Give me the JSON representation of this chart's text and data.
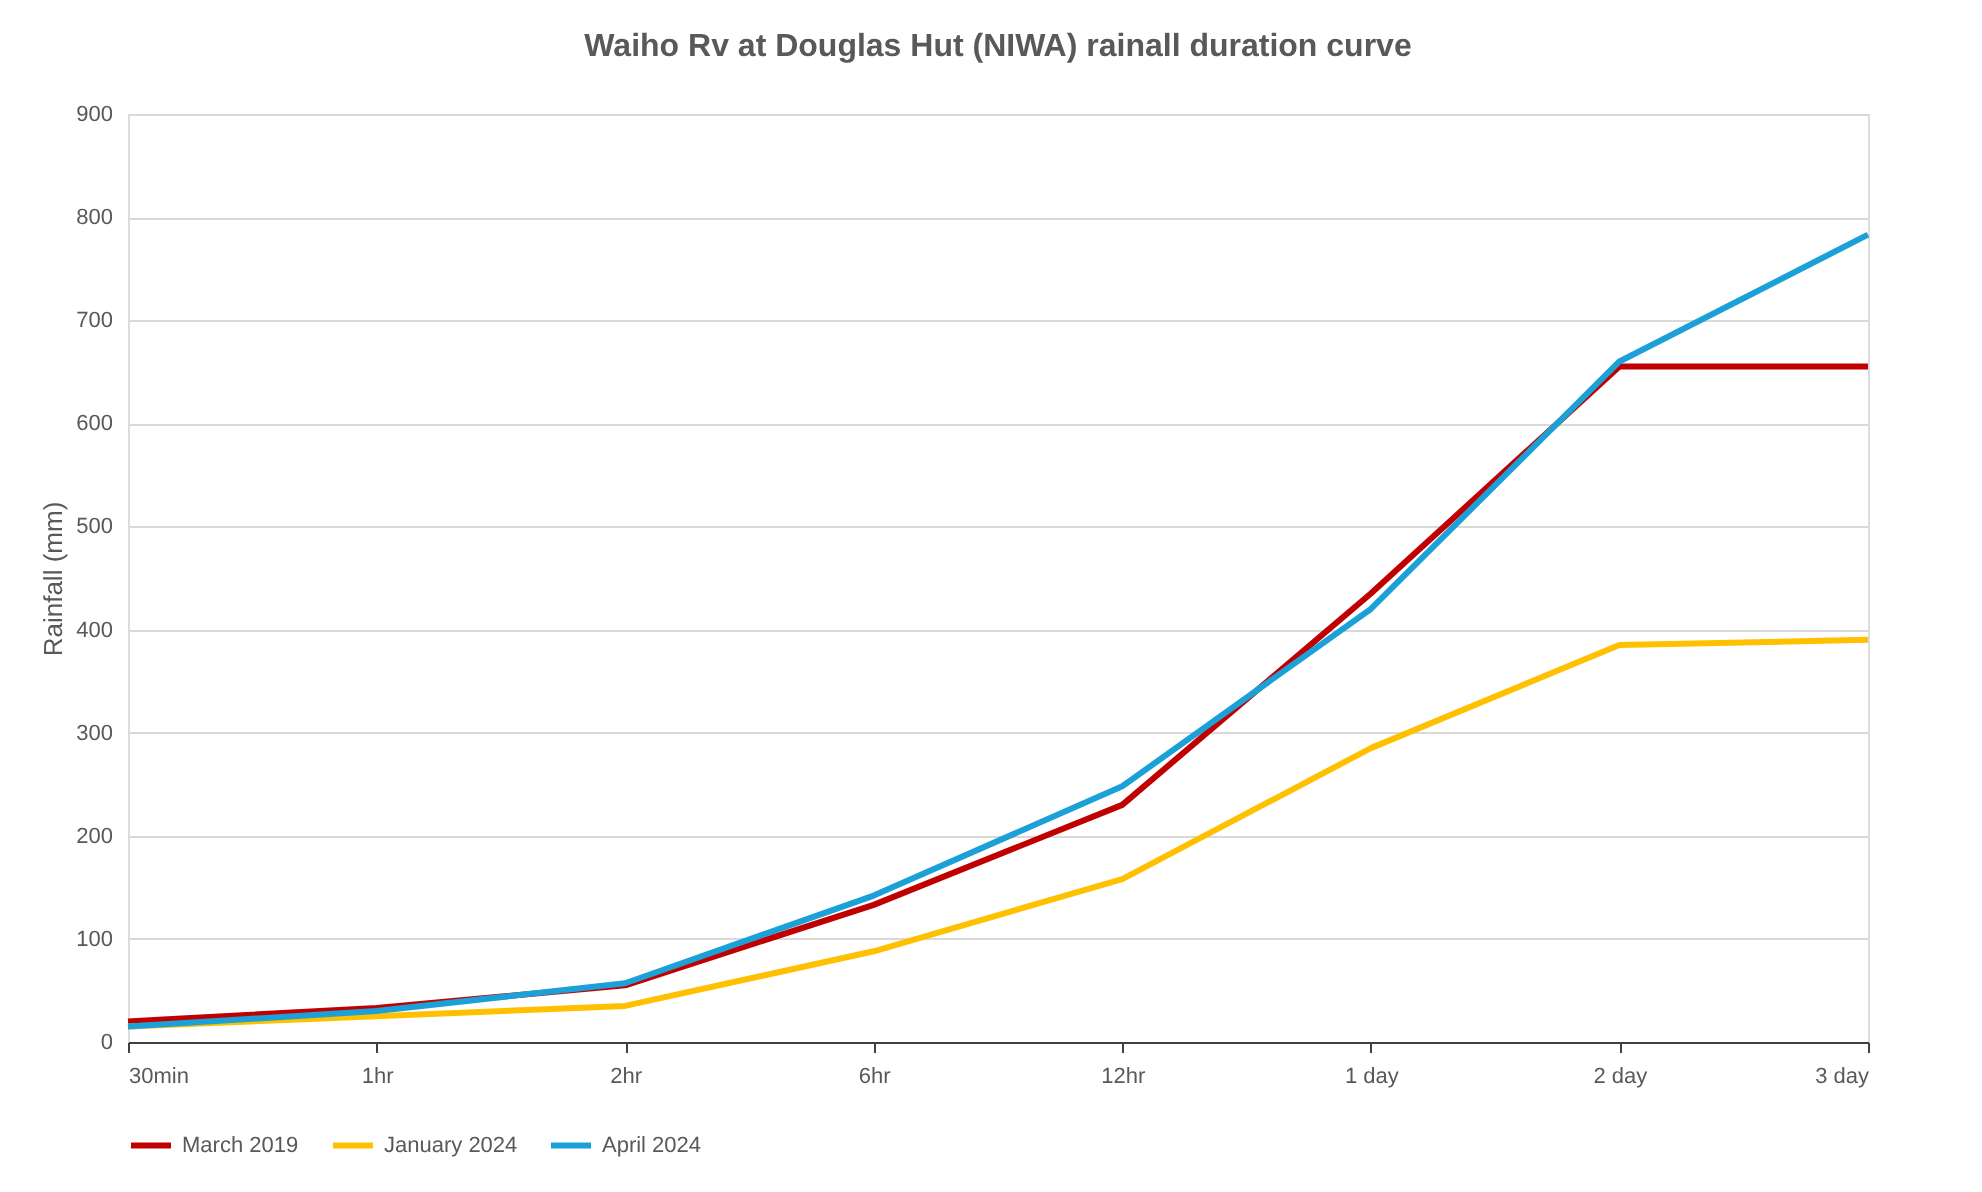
{
  "chart_data": {
    "type": "line",
    "title": "Waiho Rv at Douglas Hut (NIWA) rainall duration curve",
    "ylabel": "Rainfall (mm)",
    "categories": [
      "30min",
      "1hr",
      "2hr",
      "6hr",
      "12hr",
      "1 day",
      "2 day",
      "3 day"
    ],
    "series": [
      {
        "name": "March 2019",
        "color": "#c00000",
        "values": [
          20,
          33,
          55,
          133,
          230,
          435,
          655,
          655
        ]
      },
      {
        "name": "January 2024",
        "color": "#ffc000",
        "values": [
          15,
          25,
          35,
          88,
          158,
          285,
          385,
          390
        ]
      },
      {
        "name": "April 2024",
        "color": "#1ba1d7",
        "values": [
          15,
          30,
          57,
          142,
          248,
          420,
          660,
          783
        ]
      }
    ],
    "ylim": [
      0,
      900
    ],
    "yticks": [
      0,
      100,
      200,
      300,
      400,
      500,
      600,
      700,
      800,
      900
    ],
    "grid": "y",
    "legend": "bottom",
    "marker": "none",
    "line_style": "solid"
  }
}
